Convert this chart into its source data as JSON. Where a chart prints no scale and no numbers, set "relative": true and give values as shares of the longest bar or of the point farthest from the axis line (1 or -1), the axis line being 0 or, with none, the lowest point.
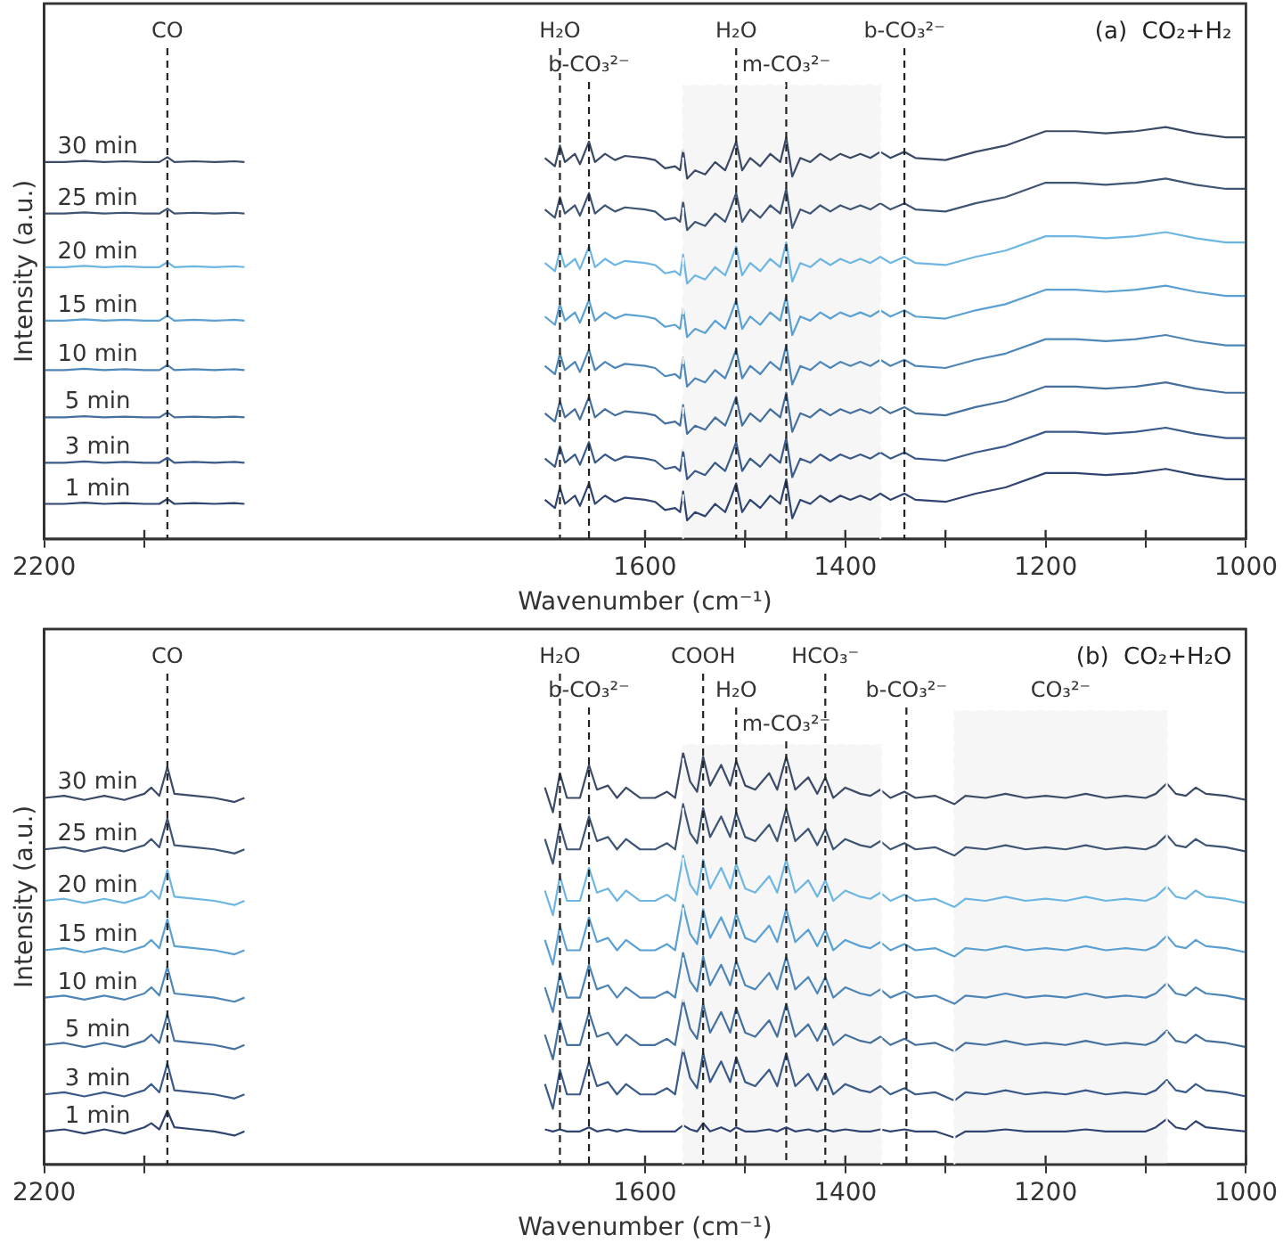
{
  "chart_data": [
    {
      "type": "line",
      "title": "(a)  CO₂+H₂",
      "xlabel": "Wavenumber (cm⁻¹)",
      "ylabel": "Intensity (a.u.)",
      "relative": true,
      "marker": "none",
      "line_style": "solid",
      "legend": false,
      "grid": false,
      "tick_labels": "x",
      "xlim": [
        2200,
        1000
      ],
      "xticks": [
        2200,
        {
          "value": 2100,
          "label": null
        },
        1600,
        {
          "value": 1500,
          "label": null
        },
        1400,
        {
          "value": 1300,
          "label": null
        },
        1200,
        {
          "value": 1100,
          "label": null
        },
        1000
      ],
      "x": [
        2200,
        2180,
        2160,
        2140,
        2120,
        2100,
        2085,
        2077,
        2070,
        2050,
        2030,
        2010,
        2000,
        1850,
        1700,
        1690,
        1685,
        1680,
        1670,
        1665,
        1656,
        1650,
        1640,
        1630,
        1620,
        1600,
        1590,
        1580,
        1570,
        1565,
        1562,
        1558,
        1550,
        1540,
        1530,
        1520,
        1515,
        1509,
        1503,
        1495,
        1485,
        1475,
        1465,
        1459,
        1453,
        1445,
        1435,
        1425,
        1415,
        1405,
        1395,
        1385,
        1375,
        1365,
        1355,
        1341,
        1330,
        1300,
        1270,
        1240,
        1200,
        1170,
        1140,
        1110,
        1080,
        1050,
        1020,
        1000
      ],
      "ref_lines": [
        {
          "axis": "x",
          "value": 2077,
          "label": "CO"
        },
        {
          "axis": "x",
          "value": 1685,
          "label": "H₂O"
        },
        {
          "axis": "x",
          "value": 1656,
          "label": "b-CO₃²⁻"
        },
        {
          "axis": "x",
          "value": 1509,
          "label": "H₂O"
        },
        {
          "axis": "x",
          "value": 1459,
          "label": "m-CO₃²⁻"
        },
        {
          "axis": "x",
          "value": 1341,
          "label": "b-CO₃²⁻"
        }
      ],
      "bands": [
        {
          "axis": "x",
          "from": 1562,
          "to": 1365,
          "color": "#f6f6f6"
        }
      ],
      "series": [
        {
          "name": "30 min",
          "color": "#3b4a66",
          "values": [
            0.915,
            0.915,
            0.918,
            0.915,
            0.917,
            0.915,
            0.915,
            0.927,
            0.915,
            0.917,
            0.915,
            0.917,
            0.915,
            null,
            0.925,
            0.905,
            0.955,
            0.915,
            0.935,
            0.91,
            0.965,
            0.915,
            0.935,
            0.92,
            0.93,
            0.925,
            0.92,
            0.9,
            0.905,
            0.895,
            0.945,
            0.875,
            0.895,
            0.885,
            0.915,
            0.895,
            0.925,
            0.965,
            0.895,
            0.925,
            0.905,
            0.935,
            0.915,
            0.975,
            0.88,
            0.925,
            0.915,
            0.935,
            0.92,
            0.935,
            0.925,
            0.935,
            0.925,
            0.94,
            0.925,
            0.94,
            0.925,
            0.92,
            0.94,
            0.955,
            0.99,
            0.99,
            0.985,
            0.99,
            1,
            0.985,
            0.975,
            0.975
          ]
        },
        {
          "name": "25 min",
          "color": "#3e5574",
          "values": [
            0.79,
            0.79,
            0.793,
            0.79,
            0.792,
            0.79,
            0.79,
            0.802,
            0.79,
            0.792,
            0.79,
            0.792,
            0.79,
            null,
            0.8,
            0.78,
            0.83,
            0.79,
            0.81,
            0.785,
            0.84,
            0.79,
            0.81,
            0.795,
            0.805,
            0.8,
            0.795,
            0.775,
            0.78,
            0.77,
            0.82,
            0.75,
            0.77,
            0.76,
            0.79,
            0.77,
            0.8,
            0.84,
            0.77,
            0.8,
            0.78,
            0.81,
            0.79,
            0.85,
            0.755,
            0.8,
            0.79,
            0.81,
            0.795,
            0.81,
            0.8,
            0.81,
            0.8,
            0.815,
            0.8,
            0.815,
            0.8,
            0.795,
            0.815,
            0.83,
            0.865,
            0.865,
            0.86,
            0.865,
            0.875,
            0.86,
            0.85,
            0.85
          ]
        },
        {
          "name": "20 min",
          "color": "#6db6e2",
          "values": [
            0.66,
            0.66,
            0.663,
            0.66,
            0.662,
            0.66,
            0.66,
            0.672,
            0.66,
            0.662,
            0.66,
            0.662,
            0.66,
            null,
            0.67,
            0.65,
            0.7,
            0.66,
            0.68,
            0.655,
            0.71,
            0.66,
            0.68,
            0.665,
            0.675,
            0.67,
            0.665,
            0.645,
            0.65,
            0.64,
            0.69,
            0.62,
            0.64,
            0.63,
            0.66,
            0.64,
            0.67,
            0.71,
            0.64,
            0.67,
            0.65,
            0.68,
            0.66,
            0.72,
            0.625,
            0.67,
            0.66,
            0.68,
            0.665,
            0.68,
            0.67,
            0.68,
            0.67,
            0.685,
            0.67,
            0.685,
            0.67,
            0.665,
            0.685,
            0.7,
            0.735,
            0.735,
            0.73,
            0.735,
            0.745,
            0.73,
            0.72,
            0.72
          ]
        },
        {
          "name": "15 min",
          "color": "#5aa0d2",
          "values": [
            0.53,
            0.53,
            0.533,
            0.53,
            0.532,
            0.53,
            0.53,
            0.542,
            0.53,
            0.532,
            0.53,
            0.532,
            0.53,
            null,
            0.54,
            0.52,
            0.57,
            0.53,
            0.55,
            0.525,
            0.58,
            0.53,
            0.55,
            0.535,
            0.545,
            0.54,
            0.535,
            0.515,
            0.52,
            0.51,
            0.56,
            0.49,
            0.51,
            0.5,
            0.53,
            0.51,
            0.54,
            0.58,
            0.51,
            0.54,
            0.52,
            0.55,
            0.53,
            0.59,
            0.495,
            0.54,
            0.53,
            0.55,
            0.535,
            0.55,
            0.54,
            0.55,
            0.54,
            0.555,
            0.54,
            0.555,
            0.54,
            0.535,
            0.555,
            0.57,
            0.605,
            0.605,
            0.6,
            0.605,
            0.615,
            0.6,
            0.59,
            0.59
          ]
        },
        {
          "name": "10 min",
          "color": "#4e86b8",
          "values": [
            0.41,
            0.41,
            0.413,
            0.41,
            0.412,
            0.41,
            0.41,
            0.422,
            0.41,
            0.412,
            0.41,
            0.412,
            0.41,
            null,
            0.42,
            0.4,
            0.45,
            0.41,
            0.43,
            0.405,
            0.46,
            0.41,
            0.43,
            0.415,
            0.425,
            0.42,
            0.415,
            0.395,
            0.4,
            0.39,
            0.44,
            0.37,
            0.39,
            0.38,
            0.41,
            0.39,
            0.42,
            0.46,
            0.39,
            0.42,
            0.4,
            0.43,
            0.41,
            0.47,
            0.375,
            0.42,
            0.41,
            0.43,
            0.415,
            0.43,
            0.42,
            0.43,
            0.42,
            0.435,
            0.42,
            0.435,
            0.42,
            0.415,
            0.435,
            0.45,
            0.485,
            0.485,
            0.48,
            0.485,
            0.495,
            0.48,
            0.47,
            0.47
          ]
        },
        {
          "name": "5 min",
          "color": "#45709e",
          "values": [
            0.295,
            0.295,
            0.298,
            0.295,
            0.297,
            0.295,
            0.295,
            0.307,
            0.295,
            0.297,
            0.295,
            0.297,
            0.295,
            null,
            0.305,
            0.285,
            0.335,
            0.295,
            0.315,
            0.29,
            0.345,
            0.295,
            0.315,
            0.3,
            0.31,
            0.305,
            0.3,
            0.28,
            0.285,
            0.275,
            0.325,
            0.255,
            0.275,
            0.265,
            0.295,
            0.275,
            0.305,
            0.345,
            0.275,
            0.305,
            0.285,
            0.315,
            0.295,
            0.355,
            0.26,
            0.305,
            0.295,
            0.315,
            0.3,
            0.315,
            0.305,
            0.315,
            0.305,
            0.32,
            0.305,
            0.32,
            0.305,
            0.3,
            0.32,
            0.335,
            0.37,
            0.37,
            0.365,
            0.37,
            0.38,
            0.365,
            0.355,
            0.355
          ]
        },
        {
          "name": "3 min",
          "color": "#3a5a8a",
          "values": [
            0.185,
            0.185,
            0.188,
            0.185,
            0.187,
            0.185,
            0.185,
            0.197,
            0.185,
            0.187,
            0.185,
            0.187,
            0.185,
            null,
            0.195,
            0.175,
            0.225,
            0.185,
            0.205,
            0.18,
            0.235,
            0.185,
            0.205,
            0.19,
            0.2,
            0.195,
            0.19,
            0.17,
            0.175,
            0.165,
            0.215,
            0.145,
            0.165,
            0.155,
            0.185,
            0.165,
            0.195,
            0.235,
            0.165,
            0.195,
            0.175,
            0.205,
            0.185,
            0.245,
            0.15,
            0.195,
            0.185,
            0.205,
            0.19,
            0.205,
            0.195,
            0.205,
            0.195,
            0.21,
            0.195,
            0.21,
            0.195,
            0.19,
            0.21,
            0.225,
            0.26,
            0.26,
            0.255,
            0.26,
            0.27,
            0.255,
            0.245,
            0.245
          ]
        },
        {
          "name": "1 min",
          "color": "#2f4470",
          "values": [
            0.085,
            0.085,
            0.088,
            0.085,
            0.087,
            0.085,
            0.085,
            0.097,
            0.085,
            0.087,
            0.085,
            0.087,
            0.085,
            null,
            0.095,
            0.075,
            0.125,
            0.085,
            0.105,
            0.08,
            0.135,
            0.085,
            0.105,
            0.09,
            0.1,
            0.095,
            0.09,
            0.07,
            0.075,
            0.065,
            0.115,
            0.045,
            0.065,
            0.055,
            0.085,
            0.065,
            0.095,
            0.135,
            0.065,
            0.095,
            0.075,
            0.105,
            0.085,
            0.145,
            0.05,
            0.095,
            0.085,
            0.105,
            0.09,
            0.105,
            0.095,
            0.105,
            0.095,
            0.11,
            0.095,
            0.11,
            0.095,
            0.09,
            0.11,
            0.125,
            0.16,
            0.16,
            0.155,
            0.16,
            0.17,
            0.155,
            0.145,
            0.145
          ]
        }
      ]
    },
    {
      "type": "line",
      "title": "(b)  CO₂+H₂O",
      "xlabel": "Wavenumber (cm⁻¹)",
      "ylabel": "Intensity (a.u.)",
      "relative": true,
      "marker": "none",
      "line_style": "solid",
      "legend": false,
      "grid": false,
      "tick_labels": "x",
      "xlim": [
        2200,
        1000
      ],
      "xticks": [
        2200,
        {
          "value": 2100,
          "label": null
        },
        1600,
        {
          "value": 1500,
          "label": null
        },
        1400,
        {
          "value": 1300,
          "label": null
        },
        1200,
        {
          "value": 1100,
          "label": null
        },
        1000
      ],
      "x": [
        2200,
        2180,
        2160,
        2140,
        2120,
        2100,
        2093,
        2085,
        2077,
        2070,
        2050,
        2030,
        2010,
        2000,
        1850,
        1700,
        1692,
        1685,
        1678,
        1665,
        1656,
        1648,
        1637,
        1628,
        1619,
        1605,
        1590,
        1578,
        1570,
        1562,
        1555,
        1548,
        1542,
        1535,
        1524,
        1515,
        1509,
        1500,
        1490,
        1476,
        1468,
        1459,
        1450,
        1437,
        1428,
        1420,
        1412,
        1400,
        1385,
        1375,
        1365,
        1355,
        1341,
        1330,
        1310,
        1291,
        1280,
        1260,
        1240,
        1220,
        1200,
        1180,
        1160,
        1140,
        1120,
        1100,
        1090,
        1079,
        1070,
        1060,
        1050,
        1040,
        1020,
        1000
      ],
      "ref_lines": [
        {
          "axis": "x",
          "value": 2077,
          "label": "CO"
        },
        {
          "axis": "x",
          "value": 1685,
          "label": "H₂O"
        },
        {
          "axis": "x",
          "value": 1656,
          "label": "b-CO₃²⁻"
        },
        {
          "axis": "x",
          "value": 1542,
          "label": "COOH"
        },
        {
          "axis": "x",
          "value": 1509,
          "label": "H₂O"
        },
        {
          "axis": "x",
          "value": 1459,
          "label": "m-CO₃²⁻"
        },
        {
          "axis": "x",
          "value": 1420,
          "label": "HCO₃⁻"
        },
        {
          "axis": "x",
          "value": 1339,
          "label": "b-CO₃²⁻"
        }
      ],
      "bands": [
        {
          "axis": "x",
          "from": 1562,
          "to": 1364,
          "color": "#f6f6f6"
        },
        {
          "axis": "x",
          "from": 1291,
          "to": 1079,
          "label": "CO₃²⁻",
          "color": "#f6f6f6"
        }
      ],
      "series": [
        {
          "name": "30 min",
          "color": "#3b4a66",
          "values": [
            0.89,
            0.895,
            0.885,
            0.895,
            0.885,
            0.9,
            0.915,
            0.895,
            0.965,
            0.9,
            0.895,
            0.89,
            0.88,
            0.89,
            null,
            0.915,
            0.855,
            0.95,
            0.89,
            0.89,
            0.97,
            0.91,
            0.92,
            0.89,
            0.915,
            0.89,
            0.89,
            0.905,
            0.89,
            1,
            0.93,
            0.905,
            0.99,
            0.92,
            0.97,
            0.92,
            0.98,
            0.92,
            0.91,
            0.95,
            0.91,
            0.99,
            0.91,
            0.94,
            0.9,
            0.94,
            0.89,
            0.915,
            0.9,
            0.895,
            0.91,
            0.89,
            0.905,
            0.89,
            0.895,
            0.875,
            0.895,
            0.89,
            0.9,
            0.89,
            0.895,
            0.89,
            0.9,
            0.89,
            0.895,
            0.89,
            0.9,
            0.925,
            0.9,
            0.895,
            0.915,
            0.9,
            0.895,
            0.885
          ]
        },
        {
          "name": "25 min",
          "color": "#3e5574",
          "values": [
            0.765,
            0.77,
            0.76,
            0.77,
            0.76,
            0.775,
            0.79,
            0.77,
            0.84,
            0.775,
            0.77,
            0.765,
            0.755,
            0.765,
            null,
            0.79,
            0.73,
            0.825,
            0.765,
            0.765,
            0.845,
            0.785,
            0.795,
            0.765,
            0.79,
            0.765,
            0.765,
            0.78,
            0.765,
            0.875,
            0.805,
            0.78,
            0.865,
            0.795,
            0.845,
            0.795,
            0.855,
            0.795,
            0.785,
            0.825,
            0.785,
            0.865,
            0.785,
            0.815,
            0.775,
            0.815,
            0.765,
            0.79,
            0.775,
            0.77,
            0.785,
            0.765,
            0.78,
            0.765,
            0.77,
            0.75,
            0.77,
            0.765,
            0.775,
            0.765,
            0.77,
            0.765,
            0.775,
            0.765,
            0.77,
            0.765,
            0.775,
            0.8,
            0.775,
            0.77,
            0.79,
            0.775,
            0.77,
            0.76
          ]
        },
        {
          "name": "20 min",
          "color": "#6db6e2",
          "values": [
            0.64,
            0.645,
            0.635,
            0.645,
            0.635,
            0.65,
            0.665,
            0.645,
            0.715,
            0.65,
            0.645,
            0.64,
            0.63,
            0.64,
            null,
            0.665,
            0.605,
            0.7,
            0.64,
            0.64,
            0.72,
            0.66,
            0.67,
            0.64,
            0.665,
            0.64,
            0.64,
            0.655,
            0.64,
            0.75,
            0.68,
            0.655,
            0.74,
            0.67,
            0.72,
            0.67,
            0.73,
            0.67,
            0.66,
            0.7,
            0.66,
            0.74,
            0.66,
            0.69,
            0.65,
            0.69,
            0.64,
            0.665,
            0.65,
            0.645,
            0.66,
            0.64,
            0.655,
            0.64,
            0.645,
            0.625,
            0.645,
            0.64,
            0.65,
            0.64,
            0.645,
            0.64,
            0.65,
            0.64,
            0.645,
            0.64,
            0.65,
            0.675,
            0.65,
            0.645,
            0.665,
            0.65,
            0.645,
            0.635
          ]
        },
        {
          "name": "15 min",
          "color": "#5aa0d2",
          "values": [
            0.52,
            0.525,
            0.515,
            0.525,
            0.515,
            0.53,
            0.545,
            0.525,
            0.595,
            0.53,
            0.525,
            0.52,
            0.51,
            0.52,
            null,
            0.545,
            0.485,
            0.58,
            0.52,
            0.52,
            0.6,
            0.54,
            0.55,
            0.52,
            0.545,
            0.52,
            0.52,
            0.535,
            0.52,
            0.63,
            0.56,
            0.535,
            0.62,
            0.55,
            0.6,
            0.55,
            0.61,
            0.55,
            0.54,
            0.58,
            0.54,
            0.62,
            0.54,
            0.57,
            0.53,
            0.57,
            0.52,
            0.545,
            0.53,
            0.525,
            0.54,
            0.52,
            0.535,
            0.52,
            0.525,
            0.505,
            0.525,
            0.52,
            0.53,
            0.52,
            0.525,
            0.52,
            0.53,
            0.52,
            0.525,
            0.52,
            0.53,
            0.555,
            0.53,
            0.525,
            0.545,
            0.53,
            0.525,
            0.515
          ]
        },
        {
          "name": "10 min",
          "color": "#4e86b8",
          "values": [
            0.405,
            0.41,
            0.4,
            0.41,
            0.4,
            0.415,
            0.43,
            0.41,
            0.48,
            0.415,
            0.41,
            0.405,
            0.395,
            0.405,
            null,
            0.43,
            0.37,
            0.465,
            0.405,
            0.405,
            0.485,
            0.425,
            0.435,
            0.405,
            0.43,
            0.405,
            0.405,
            0.42,
            0.405,
            0.515,
            0.445,
            0.42,
            0.505,
            0.435,
            0.485,
            0.435,
            0.495,
            0.435,
            0.425,
            0.465,
            0.425,
            0.505,
            0.425,
            0.455,
            0.415,
            0.455,
            0.405,
            0.43,
            0.415,
            0.41,
            0.425,
            0.405,
            0.42,
            0.405,
            0.41,
            0.39,
            0.41,
            0.405,
            0.415,
            0.405,
            0.41,
            0.405,
            0.415,
            0.405,
            0.41,
            0.405,
            0.415,
            0.44,
            0.415,
            0.41,
            0.43,
            0.415,
            0.41,
            0.4
          ]
        },
        {
          "name": "5 min",
          "color": "#45709e",
          "values": [
            0.29,
            0.295,
            0.285,
            0.295,
            0.285,
            0.3,
            0.315,
            0.295,
            0.365,
            0.3,
            0.295,
            0.29,
            0.28,
            0.29,
            null,
            0.315,
            0.255,
            0.35,
            0.29,
            0.29,
            0.37,
            0.31,
            0.32,
            0.29,
            0.315,
            0.29,
            0.29,
            0.305,
            0.29,
            0.4,
            0.33,
            0.305,
            0.39,
            0.32,
            0.37,
            0.32,
            0.38,
            0.32,
            0.31,
            0.35,
            0.31,
            0.39,
            0.31,
            0.34,
            0.3,
            0.34,
            0.29,
            0.315,
            0.3,
            0.295,
            0.31,
            0.29,
            0.305,
            0.29,
            0.295,
            0.275,
            0.295,
            0.29,
            0.3,
            0.29,
            0.295,
            0.29,
            0.3,
            0.29,
            0.295,
            0.29,
            0.3,
            0.325,
            0.3,
            0.295,
            0.315,
            0.3,
            0.295,
            0.285
          ]
        },
        {
          "name": "3 min",
          "color": "#3a5a8a",
          "values": [
            0.17,
            0.175,
            0.165,
            0.175,
            0.165,
            0.18,
            0.195,
            0.175,
            0.245,
            0.18,
            0.175,
            0.17,
            0.16,
            0.17,
            null,
            0.195,
            0.135,
            0.23,
            0.17,
            0.17,
            0.25,
            0.19,
            0.2,
            0.17,
            0.195,
            0.17,
            0.17,
            0.185,
            0.17,
            0.28,
            0.21,
            0.185,
            0.27,
            0.2,
            0.25,
            0.2,
            0.26,
            0.2,
            0.19,
            0.23,
            0.19,
            0.27,
            0.19,
            0.22,
            0.18,
            0.22,
            0.17,
            0.195,
            0.18,
            0.175,
            0.19,
            0.17,
            0.185,
            0.17,
            0.175,
            0.155,
            0.175,
            0.17,
            0.18,
            0.17,
            0.175,
            0.17,
            0.18,
            0.17,
            0.175,
            0.17,
            0.18,
            0.205,
            0.18,
            0.175,
            0.195,
            0.18,
            0.175,
            0.165
          ]
        },
        {
          "name": "1 min",
          "color": "#2f4470",
          "values": [
            0.08,
            0.085,
            0.075,
            0.085,
            0.075,
            0.09,
            0.1,
            0.085,
            0.13,
            0.09,
            0.085,
            0.08,
            0.07,
            0.08,
            null,
            0.085,
            0.08,
            0.085,
            0.08,
            0.08,
            0.09,
            0.08,
            0.085,
            0.08,
            0.085,
            0.08,
            0.08,
            0.08,
            0.08,
            0.095,
            0.085,
            0.08,
            0.1,
            0.08,
            0.09,
            0.08,
            0.09,
            0.08,
            0.08,
            0.085,
            0.08,
            0.09,
            0.08,
            0.085,
            0.08,
            0.085,
            0.08,
            0.085,
            0.08,
            0.08,
            0.085,
            0.08,
            0.085,
            0.08,
            0.08,
            0.065,
            0.08,
            0.08,
            0.085,
            0.08,
            0.08,
            0.08,
            0.085,
            0.08,
            0.08,
            0.08,
            0.09,
            0.11,
            0.09,
            0.085,
            0.105,
            0.09,
            0.085,
            0.08
          ]
        }
      ]
    }
  ]
}
